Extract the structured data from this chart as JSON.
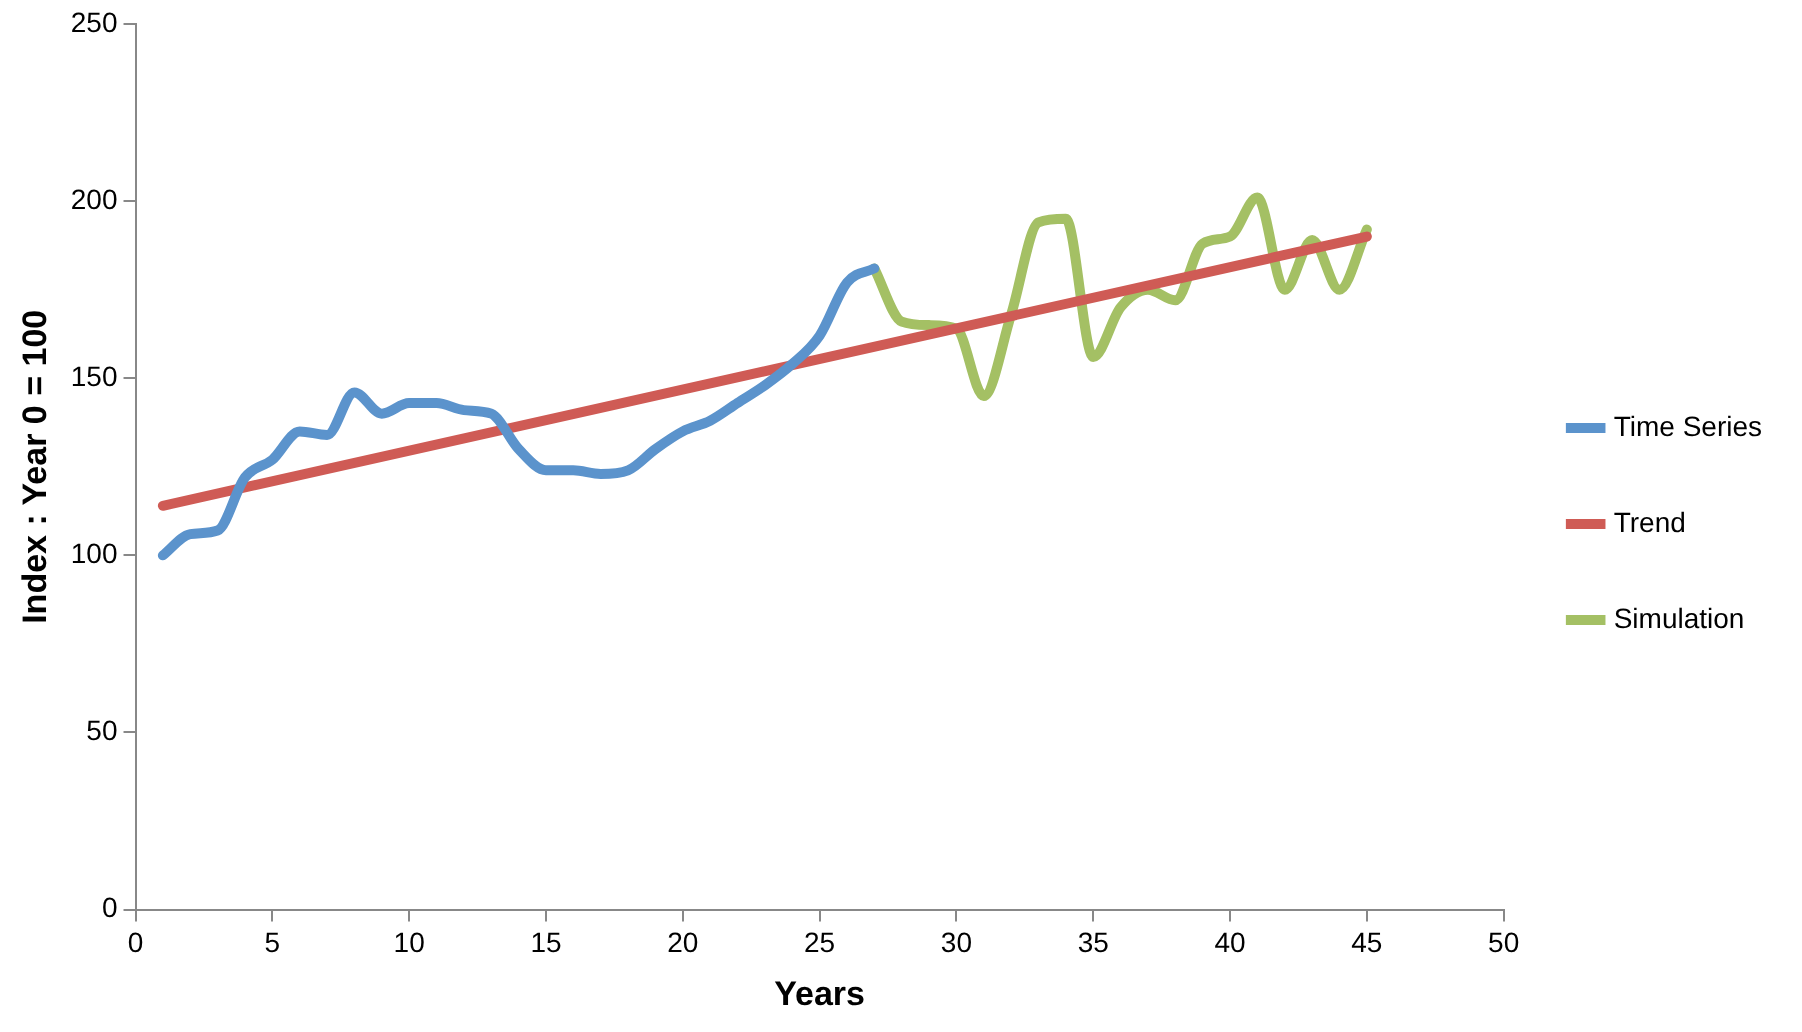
{
  "chart_data": {
    "type": "line",
    "xlabel": "Years",
    "ylabel": "Index : Year 0 = 100",
    "xlim": [
      0,
      50
    ],
    "xticks": [
      0,
      5,
      10,
      15,
      20,
      25,
      30,
      35,
      40,
      45,
      50
    ],
    "ylim": [
      0,
      250
    ],
    "yticks": [
      0,
      50,
      100,
      150,
      200,
      250
    ],
    "grid": false,
    "legend": "right",
    "marker": "none",
    "line_style": "solid",
    "series": [
      {
        "name": "Time Series",
        "color": "#5b93cc",
        "x": [
          1,
          2,
          3,
          4,
          5,
          6,
          7,
          8,
          9,
          10,
          11,
          12,
          13,
          14,
          15,
          16,
          17,
          18,
          19,
          20,
          21,
          22,
          23,
          24,
          25,
          26,
          27
        ],
        "values": [
          100,
          106,
          107,
          122,
          127,
          135,
          134,
          146,
          140,
          143,
          143,
          141,
          140,
          130,
          124,
          124,
          123,
          124,
          130,
          135,
          138,
          143,
          148,
          154,
          162,
          177,
          181
        ]
      },
      {
        "name": "Trend",
        "color": "#cf5b55",
        "x": [
          1,
          45
        ],
        "values": [
          114,
          190
        ]
      },
      {
        "name": "Simulation",
        "color": "#a4c064",
        "x": [
          27,
          28,
          29,
          30,
          31,
          32,
          33,
          34,
          35,
          36,
          37,
          38,
          39,
          40,
          41,
          42,
          43,
          44,
          45
        ],
        "values": [
          181,
          166,
          165,
          164,
          145,
          168,
          194,
          195,
          156,
          170,
          175,
          172,
          188,
          190,
          201,
          175,
          189,
          175,
          192
        ]
      }
    ]
  }
}
